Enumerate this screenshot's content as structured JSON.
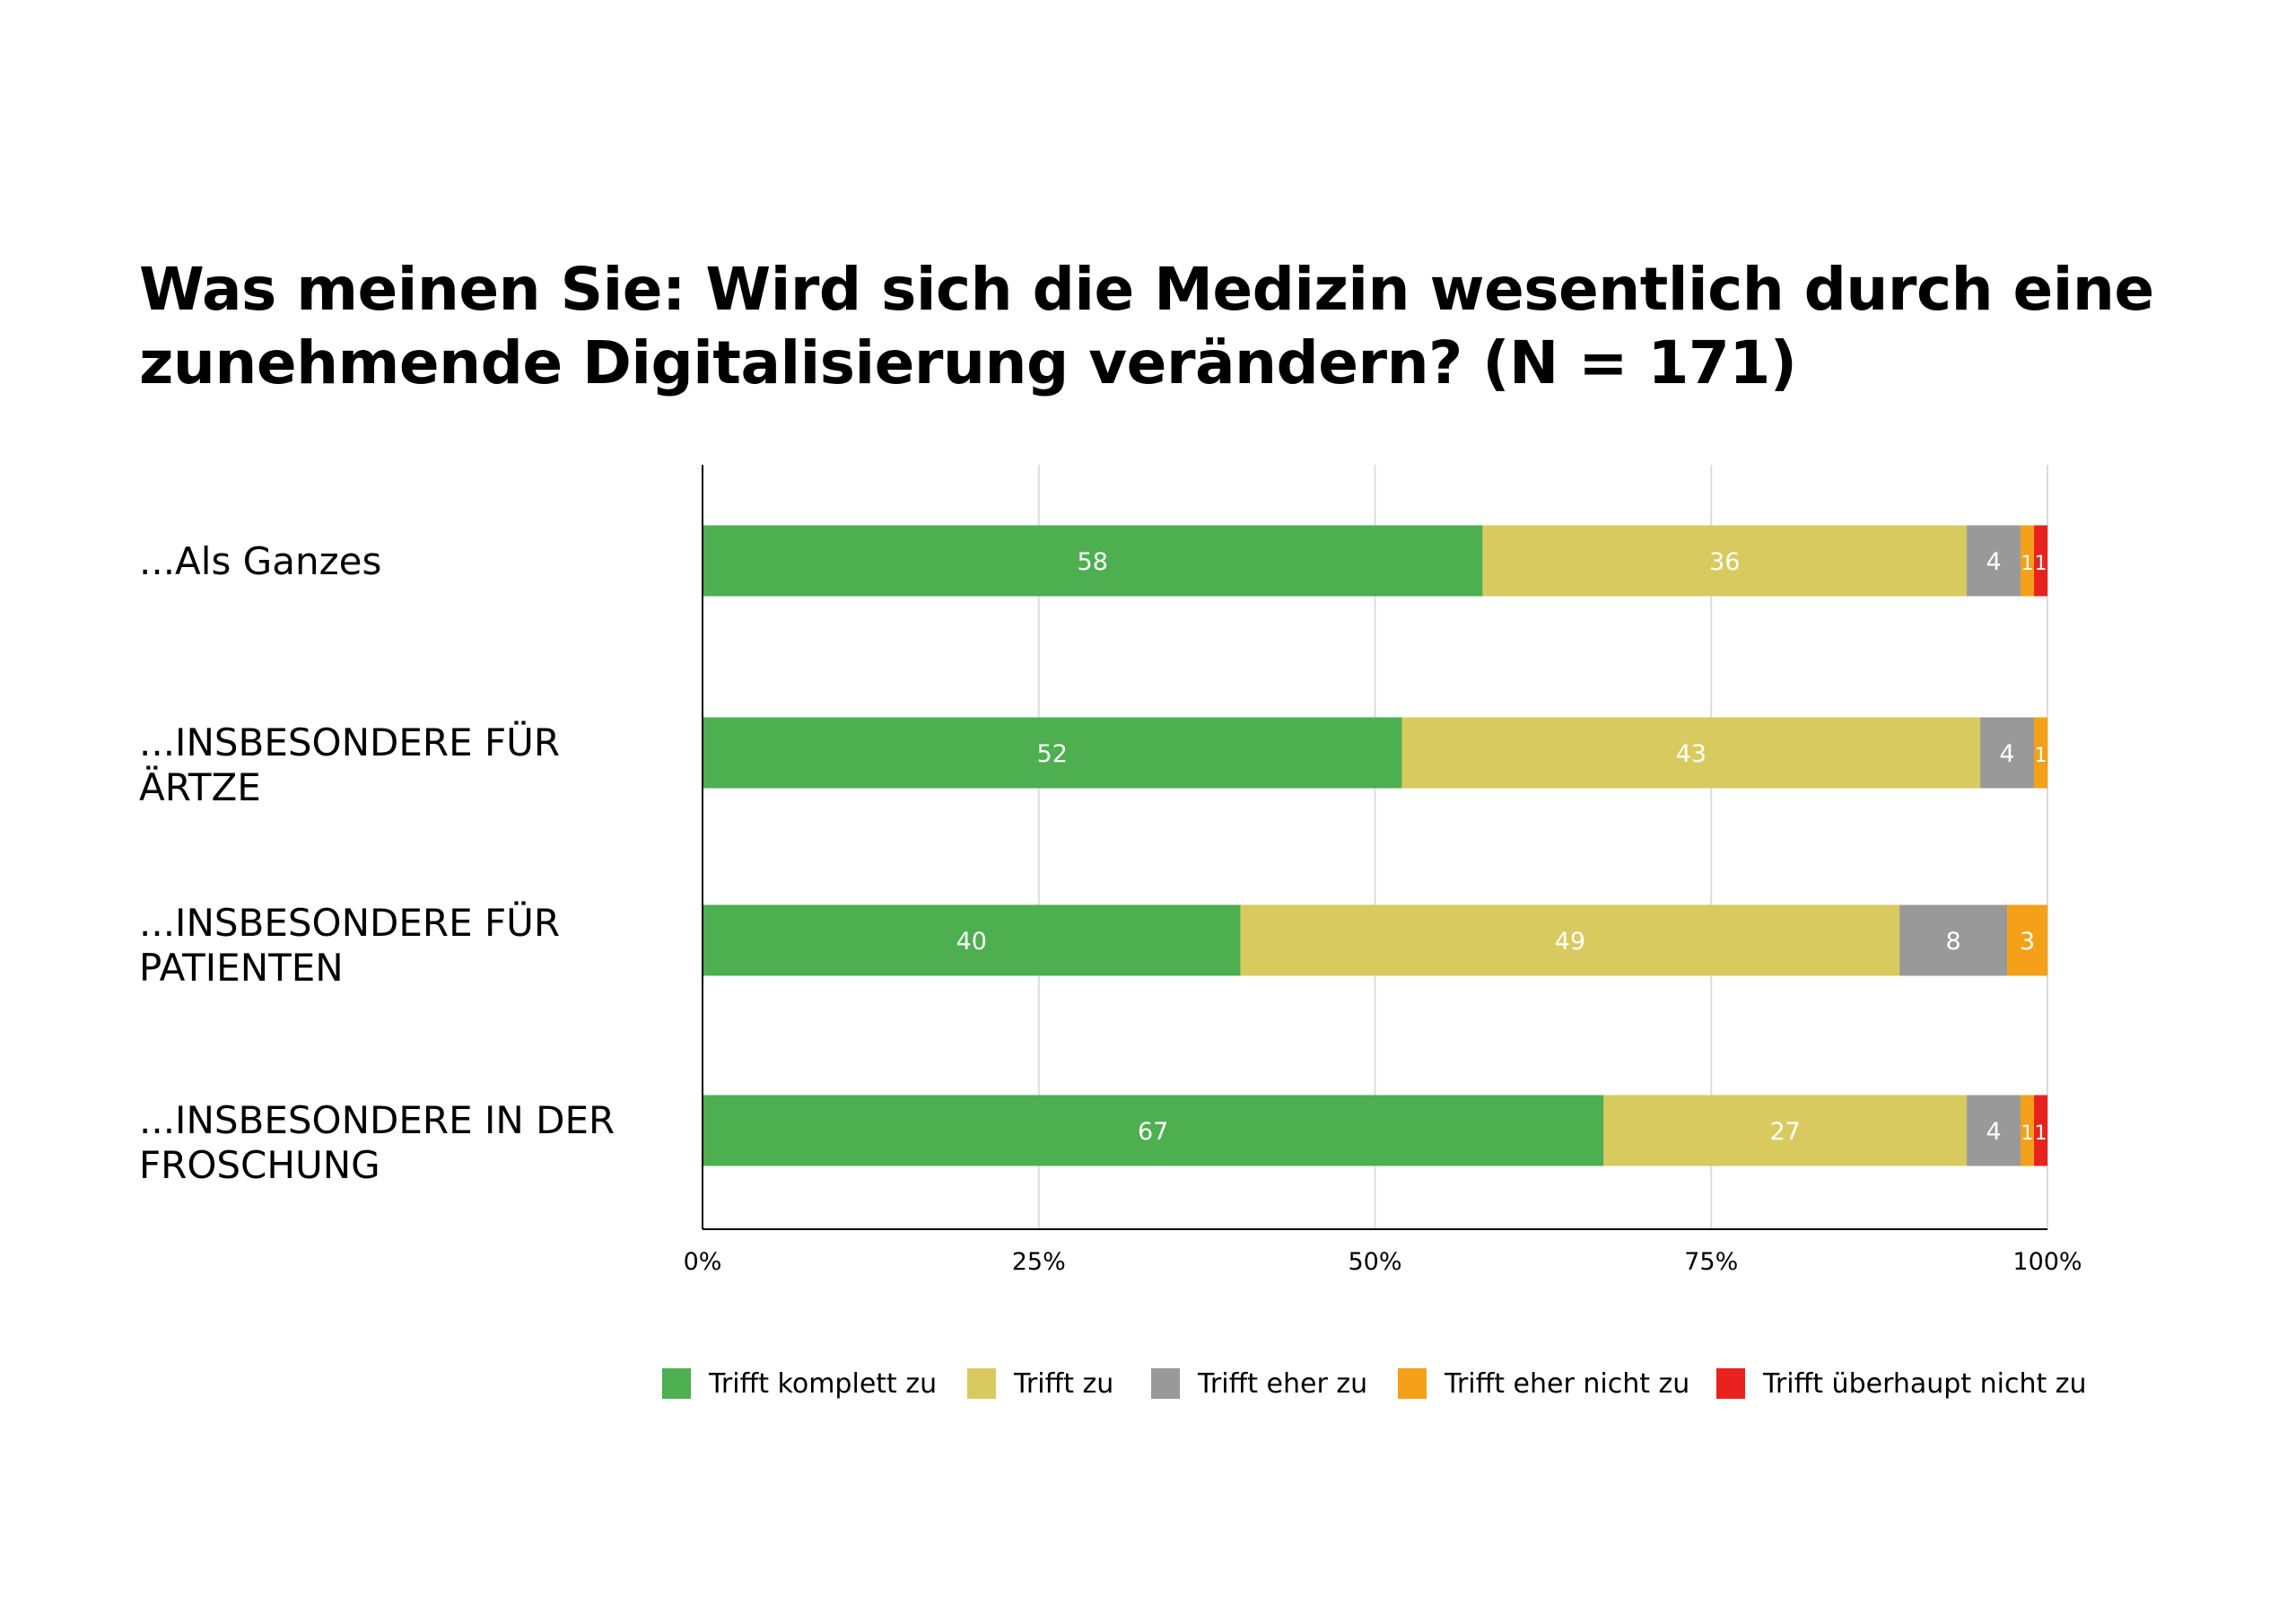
{
  "title_line1": "Was meinen Sie: Wird sich die Medizin wesentlich durch eine",
  "title_line2": "zunehmende Digitalisierung verändern? (N = 171)",
  "chart_data": {
    "type": "bar",
    "orientation": "horizontal",
    "stacked": true,
    "categories": [
      "...Als Ganzes",
      "...INSBESONDERE FÜR ÄRTZE",
      "...INSBESONDERE FÜR PATIENTEN",
      "...INSBESONDERE IN DER FROSCHUNG"
    ],
    "category_lines": [
      [
        "...Als Ganzes"
      ],
      [
        "...INSBESONDERE FÜR ÄRTZE"
      ],
      [
        "...INSBESONDERE FÜR",
        "PATIENTEN"
      ],
      [
        "...INSBESONDERE IN DER",
        "FROSCHUNG"
      ]
    ],
    "series": [
      {
        "name": "Trifft komplett zu",
        "color": "#4daf50",
        "values": [
          58,
          52,
          40,
          67
        ]
      },
      {
        "name": "Trifft zu",
        "color": "#d9ca5f",
        "values": [
          36,
          43,
          49,
          27
        ]
      },
      {
        "name": "Trifft eher zu",
        "color": "#999999",
        "values": [
          4,
          4,
          8,
          4
        ]
      },
      {
        "name": "Trifft eher nicht zu",
        "color": "#f5a019",
        "values": [
          1,
          1,
          3,
          1
        ]
      },
      {
        "name": "Trifft überhaupt nicht zu",
        "color": "#e8231f",
        "values": [
          1,
          0,
          0,
          1
        ]
      }
    ],
    "xlim": [
      0,
      100
    ],
    "x_ticks": [
      "0%",
      "25%",
      "50%",
      "75%",
      "100%"
    ],
    "grid": true,
    "legend_position": "bottom"
  }
}
